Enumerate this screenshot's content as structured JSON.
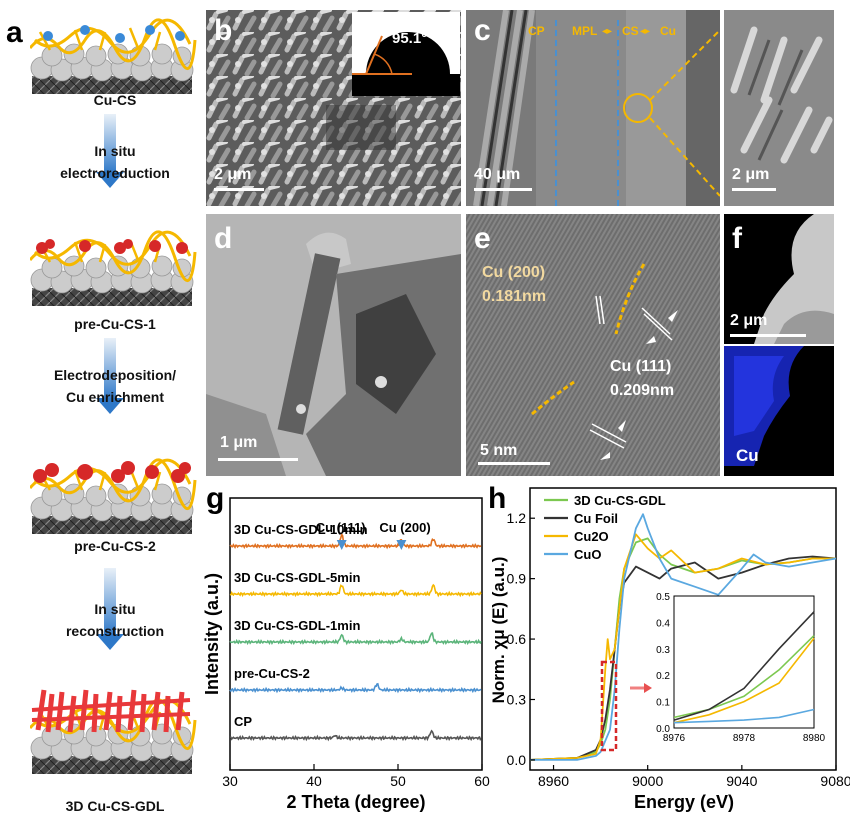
{
  "panel_letters": {
    "a": "a",
    "b": "b",
    "c": "c",
    "d": "d",
    "e": "e",
    "f": "f",
    "g": "g",
    "h": "h"
  },
  "schematic": {
    "stage1": "Cu-CS",
    "step1": "In situ\nelectroreduction",
    "stage2": "pre-Cu-CS-1",
    "step2": "Electrodeposition/\nCu enrichment",
    "stage3": "pre-Cu-CS-2",
    "step3": "In situ\nreconstruction",
    "stage4": "3D Cu-CS-GDL"
  },
  "panel_b": {
    "contact_angle": "95.1°",
    "scale": "2 μm"
  },
  "panel_c": {
    "labels": [
      "CP",
      "MPL",
      "CS",
      "Cu"
    ],
    "scale_main": "40 μm",
    "scale_zoom": "2 μm"
  },
  "panel_d": {
    "scale": "1 μm"
  },
  "panel_e": {
    "cu200": "Cu (200)",
    "cu200_d": "0.181nm",
    "cu111": "Cu (111)",
    "cu111_d": "0.209nm",
    "scale": "5 nm"
  },
  "panel_f": {
    "scale": "2 μm",
    "element": "Cu"
  },
  "colors": {
    "orange": "#E07020",
    "yellow": "#F5B800",
    "green": "#5BB47A",
    "blue": "#4A90D0",
    "dark": "#555555",
    "marker": "#4A90D0"
  },
  "chart_data": [
    {
      "type": "line",
      "panel": "g",
      "xlabel": "2 Theta (degree)",
      "ylabel": "Intensity (a.u.)",
      "xlim": [
        30,
        60
      ],
      "xticks": [
        "30",
        "40",
        "50",
        "60"
      ],
      "peak_markers": [
        {
          "label": "Cu (111)",
          "x": 43.3
        },
        {
          "label": "Cu (200)",
          "x": 50.4
        }
      ],
      "series": [
        {
          "name": "3D Cu-CS-GDL-10min",
          "color": "#E07020",
          "offset": 4,
          "peaks": [
            [
              43.3,
              0.55
            ],
            [
              50.4,
              0.3
            ],
            [
              54.2,
              0.35
            ]
          ]
        },
        {
          "name": "3D Cu-CS-GDL-5min",
          "color": "#F5B800",
          "offset": 3,
          "peaks": [
            [
              43.3,
              0.45
            ],
            [
              54.2,
              0.45
            ],
            [
              50.4,
              0.2
            ]
          ]
        },
        {
          "name": "3D Cu-CS-GDL-1min",
          "color": "#5BB47A",
          "offset": 2,
          "peaks": [
            [
              43.3,
              0.35
            ],
            [
              54.0,
              0.45
            ],
            [
              50.4,
              0.15
            ]
          ]
        },
        {
          "name": "pre-Cu-CS-2",
          "color": "#4A90D0",
          "offset": 1,
          "peaks": [
            [
              47.5,
              0.3
            ],
            [
              43.3,
              0.1
            ]
          ]
        },
        {
          "name": "CP",
          "color": "#555555",
          "offset": 0,
          "peaks": [
            [
              54.0,
              0.35
            ],
            [
              42.5,
              0.12
            ]
          ]
        }
      ]
    },
    {
      "type": "line",
      "panel": "h",
      "xlabel": "Energy (eV)",
      "ylabel": "Norm. χμ (E) (a.u.)",
      "xlim": [
        8950,
        9080
      ],
      "ylim": [
        -0.05,
        1.35
      ],
      "xticks": [
        "8960",
        "9000",
        "9040",
        "9080"
      ],
      "yticks": [
        "0.0",
        "0.3",
        "0.6",
        "0.9",
        "1.2"
      ],
      "legend": "top-left",
      "series": [
        {
          "name": "3D Cu-CS-GDL",
          "color": "#7CC850",
          "x": [
            8950,
            8970,
            8978,
            8980,
            8982,
            8984,
            8986,
            8988,
            8990,
            8995,
            9000,
            9005,
            9010,
            9020,
            9030,
            9040,
            9050,
            9060,
            9070,
            9080
          ],
          "y": [
            0.0,
            0.01,
            0.04,
            0.08,
            0.15,
            0.3,
            0.55,
            0.8,
            0.95,
            1.08,
            1.1,
            1.02,
            0.97,
            0.93,
            0.95,
            0.99,
            0.97,
            0.98,
            1.0,
            1.0
          ]
        },
        {
          "name": "Cu Foil",
          "color": "#333333",
          "x": [
            8950,
            8970,
            8978,
            8980,
            8982,
            8984,
            8986,
            8988,
            8990,
            8995,
            9000,
            9005,
            9010,
            9020,
            9030,
            9040,
            9050,
            9060,
            9070,
            9080
          ],
          "y": [
            0.0,
            0.01,
            0.05,
            0.1,
            0.2,
            0.35,
            0.55,
            0.75,
            0.88,
            0.96,
            0.93,
            0.9,
            0.95,
            0.98,
            0.9,
            0.93,
            0.97,
            1.0,
            1.01,
            1.0
          ]
        },
        {
          "name": "Cu2O",
          "color": "#F5B800",
          "x": [
            8950,
            8970,
            8978,
            8980,
            8982,
            8983,
            8984,
            8986,
            8988,
            8990,
            8995,
            9000,
            9005,
            9010,
            9020,
            9030,
            9040,
            9050,
            9060,
            9070,
            9080
          ],
          "y": [
            0.0,
            0.01,
            0.03,
            0.1,
            0.45,
            0.6,
            0.5,
            0.55,
            0.75,
            0.95,
            1.12,
            1.05,
            1.0,
            1.04,
            0.93,
            0.95,
            1.0,
            0.97,
            0.98,
            1.0,
            1.0
          ]
        },
        {
          "name": "CuO",
          "color": "#5AA8E0",
          "x": [
            8950,
            8970,
            8978,
            8980,
            8984,
            8986,
            8988,
            8990,
            8995,
            8998,
            9000,
            9005,
            9010,
            9020,
            9030,
            9040,
            9045,
            9050,
            9060,
            9070,
            9080
          ],
          "y": [
            0.0,
            0.0,
            0.02,
            0.04,
            0.15,
            0.35,
            0.65,
            0.9,
            1.15,
            1.22,
            1.15,
            1.0,
            0.9,
            0.86,
            0.82,
            0.95,
            1.02,
            0.98,
            0.96,
            0.98,
            1.0
          ]
        }
      ],
      "inset": {
        "xlim": [
          8976,
          8980
        ],
        "ylim": [
          0.0,
          0.5
        ],
        "xticks": [
          "8976",
          "8978",
          "8980"
        ],
        "yticks": [
          "0.0",
          "0.1",
          "0.2",
          "0.3",
          "0.4",
          "0.5"
        ],
        "series": [
          {
            "name": "3D Cu-CS-GDL",
            "x": [
              8976,
              8977,
              8978,
              8979,
              8980
            ],
            "y": [
              0.04,
              0.07,
              0.12,
              0.22,
              0.35
            ]
          },
          {
            "name": "Cu Foil",
            "x": [
              8976,
              8977,
              8978,
              8979,
              8980
            ],
            "y": [
              0.03,
              0.07,
              0.15,
              0.3,
              0.44
            ]
          },
          {
            "name": "Cu2O",
            "x": [
              8976,
              8977,
              8978,
              8979,
              8980
            ],
            "y": [
              0.02,
              0.05,
              0.1,
              0.17,
              0.34
            ]
          },
          {
            "name": "CuO",
            "x": [
              8976,
              8977,
              8978,
              8979,
              8980
            ],
            "y": [
              0.02,
              0.025,
              0.03,
              0.04,
              0.07
            ]
          }
        ]
      }
    }
  ]
}
